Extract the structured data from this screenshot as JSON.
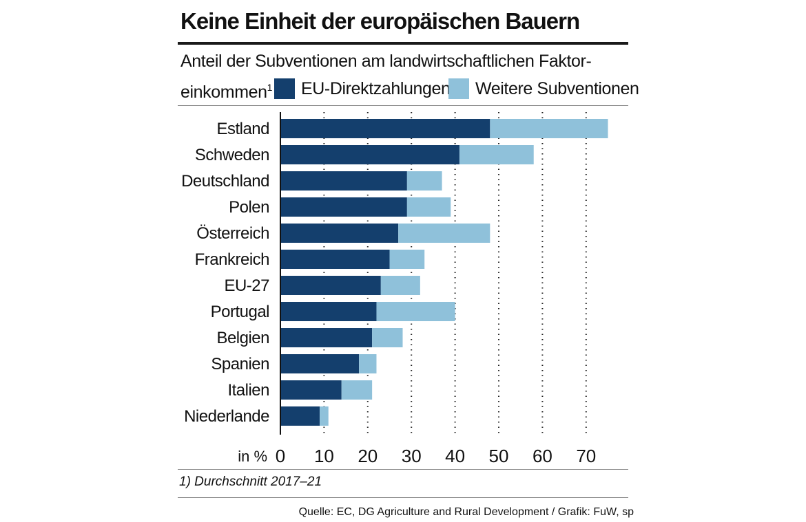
{
  "header": {
    "title": "Keine Einheit der europäischen Bauern",
    "subtitle_line1": "Anteil der Subventionen am landwirtschaftlichen Faktor-",
    "subtitle_line2": "einkommen",
    "footnote_marker": "1"
  },
  "footnote": "1) Durchschnitt 2017–21",
  "source": "Quelle: EC, DG Agriculture and Rural Development / Grafik: FuW, sp",
  "colors": {
    "dark": "#143f6d",
    "light": "#8fc1da"
  },
  "chart_data": {
    "type": "bar",
    "orientation": "horizontal",
    "stacked": true,
    "categories": [
      "Estland",
      "Schweden",
      "Deutschland",
      "Polen",
      "Österreich",
      "Frankreich",
      "EU-27",
      "Portugal",
      "Belgien",
      "Spanien",
      "Italien",
      "Niederlande"
    ],
    "series": [
      {
        "name": "EU-Direktzahlungen",
        "color": "#143f6d",
        "values": [
          48,
          41,
          29,
          29,
          27,
          25,
          23,
          22,
          21,
          18,
          14,
          9
        ]
      },
      {
        "name": "Weitere Subventionen",
        "color": "#8fc1da",
        "values": [
          27,
          17,
          8,
          10,
          21,
          8,
          9,
          18,
          7,
          4,
          7,
          2
        ]
      }
    ],
    "xlabel": "in %",
    "xlim": [
      0,
      75
    ],
    "xticks": [
      0,
      10,
      20,
      30,
      40,
      50,
      60,
      70
    ],
    "grid": "vertical-dotted",
    "legend_position": "top"
  }
}
